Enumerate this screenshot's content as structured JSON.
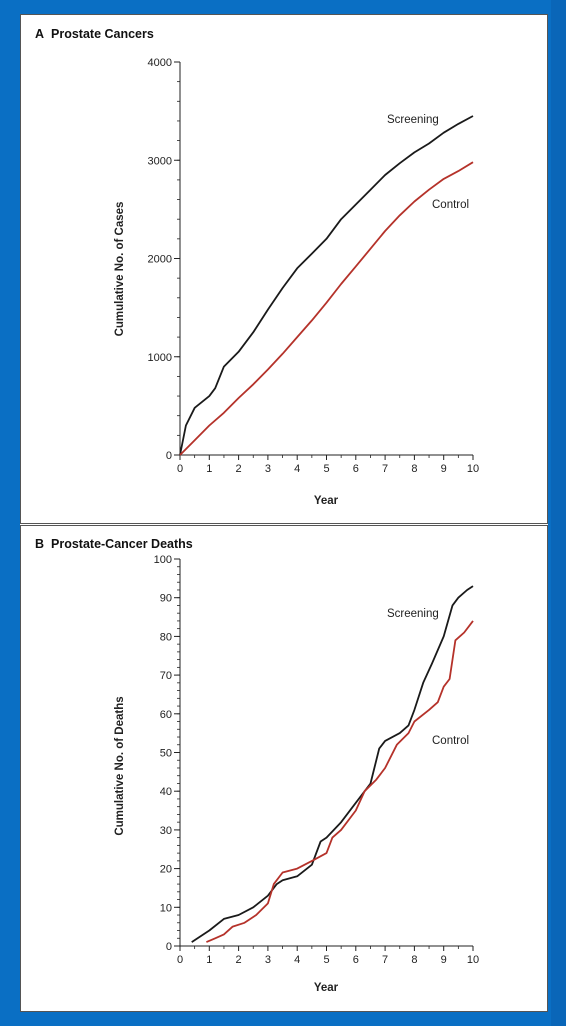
{
  "chart_data": [
    {
      "type": "line",
      "panel_letter": "A",
      "title": "Prostate Cancers",
      "xlabel": "Year",
      "ylabel": "Cumulative No. of Cases",
      "xlim": [
        0,
        10
      ],
      "ylim": [
        0,
        4000
      ],
      "x_ticks": [
        0,
        1,
        2,
        3,
        4,
        5,
        6,
        7,
        8,
        9,
        10
      ],
      "y_ticks": [
        0,
        1000,
        2000,
        3000,
        4000
      ],
      "y_minor_step": 200,
      "series": [
        {
          "name": "Screening",
          "color": "#1a1a1a",
          "points": [
            [
              0,
              0
            ],
            [
              0.2,
              300
            ],
            [
              0.5,
              480
            ],
            [
              1.0,
              600
            ],
            [
              1.2,
              680
            ],
            [
              1.5,
              900
            ],
            [
              2.0,
              1050
            ],
            [
              2.5,
              1250
            ],
            [
              3.0,
              1480
            ],
            [
              3.5,
              1700
            ],
            [
              4.0,
              1900
            ],
            [
              4.5,
              2050
            ],
            [
              5.0,
              2200
            ],
            [
              5.5,
              2400
            ],
            [
              6.0,
              2550
            ],
            [
              6.5,
              2700
            ],
            [
              7.0,
              2850
            ],
            [
              7.5,
              2970
            ],
            [
              8.0,
              3080
            ],
            [
              8.5,
              3170
            ],
            [
              9.0,
              3280
            ],
            [
              9.5,
              3370
            ],
            [
              10.0,
              3450
            ]
          ]
        },
        {
          "name": "Control",
          "color": "#b5322a",
          "points": [
            [
              0,
              0
            ],
            [
              0.5,
              150
            ],
            [
              1.0,
              300
            ],
            [
              1.5,
              430
            ],
            [
              2.0,
              580
            ],
            [
              2.5,
              720
            ],
            [
              3.0,
              870
            ],
            [
              3.5,
              1030
            ],
            [
              4.0,
              1200
            ],
            [
              4.5,
              1370
            ],
            [
              5.0,
              1550
            ],
            [
              5.5,
              1740
            ],
            [
              6.0,
              1920
            ],
            [
              6.5,
              2100
            ],
            [
              7.0,
              2280
            ],
            [
              7.5,
              2440
            ],
            [
              8.0,
              2580
            ],
            [
              8.5,
              2700
            ],
            [
              9.0,
              2810
            ],
            [
              9.5,
              2890
            ],
            [
              10.0,
              2980
            ]
          ]
        }
      ]
    },
    {
      "type": "line",
      "panel_letter": "B",
      "title": "Prostate-Cancer Deaths",
      "xlabel": "Year",
      "ylabel": "Cumulative No. of Deaths",
      "xlim": [
        0,
        10
      ],
      "ylim": [
        0,
        100
      ],
      "x_ticks": [
        0,
        1,
        2,
        3,
        4,
        5,
        6,
        7,
        8,
        9,
        10
      ],
      "y_ticks": [
        0,
        10,
        20,
        30,
        40,
        50,
        60,
        70,
        80,
        90,
        100
      ],
      "y_minor_step": 2,
      "series": [
        {
          "name": "Screening",
          "color": "#1a1a1a",
          "points": [
            [
              0.4,
              1
            ],
            [
              1.0,
              4
            ],
            [
              1.5,
              7
            ],
            [
              2.0,
              8
            ],
            [
              2.5,
              10
            ],
            [
              3.0,
              13
            ],
            [
              3.3,
              16
            ],
            [
              3.5,
              17
            ],
            [
              4.0,
              18
            ],
            [
              4.5,
              21
            ],
            [
              4.8,
              27
            ],
            [
              5.0,
              28
            ],
            [
              5.5,
              32
            ],
            [
              6.0,
              37
            ],
            [
              6.5,
              42
            ],
            [
              6.8,
              51
            ],
            [
              7.0,
              53
            ],
            [
              7.5,
              55
            ],
            [
              7.8,
              57
            ],
            [
              8.0,
              61
            ],
            [
              8.3,
              68
            ],
            [
              8.6,
              73
            ],
            [
              9.0,
              80
            ],
            [
              9.3,
              88
            ],
            [
              9.5,
              90
            ],
            [
              9.8,
              92
            ],
            [
              10.0,
              93
            ]
          ]
        },
        {
          "name": "Control",
          "color": "#b5322a",
          "points": [
            [
              0.9,
              1
            ],
            [
              1.2,
              2
            ],
            [
              1.5,
              3
            ],
            [
              1.8,
              5
            ],
            [
              2.2,
              6
            ],
            [
              2.6,
              8
            ],
            [
              3.0,
              11
            ],
            [
              3.2,
              16
            ],
            [
              3.5,
              19
            ],
            [
              4.0,
              20
            ],
            [
              4.5,
              22
            ],
            [
              5.0,
              24
            ],
            [
              5.2,
              28
            ],
            [
              5.5,
              30
            ],
            [
              6.0,
              35
            ],
            [
              6.3,
              40
            ],
            [
              6.7,
              43
            ],
            [
              7.0,
              46
            ],
            [
              7.4,
              52
            ],
            [
              7.8,
              55
            ],
            [
              8.0,
              58
            ],
            [
              8.5,
              61
            ],
            [
              8.8,
              63
            ],
            [
              9.0,
              67
            ],
            [
              9.2,
              69
            ],
            [
              9.4,
              79
            ],
            [
              9.7,
              81
            ],
            [
              10.0,
              84
            ]
          ]
        }
      ]
    }
  ]
}
